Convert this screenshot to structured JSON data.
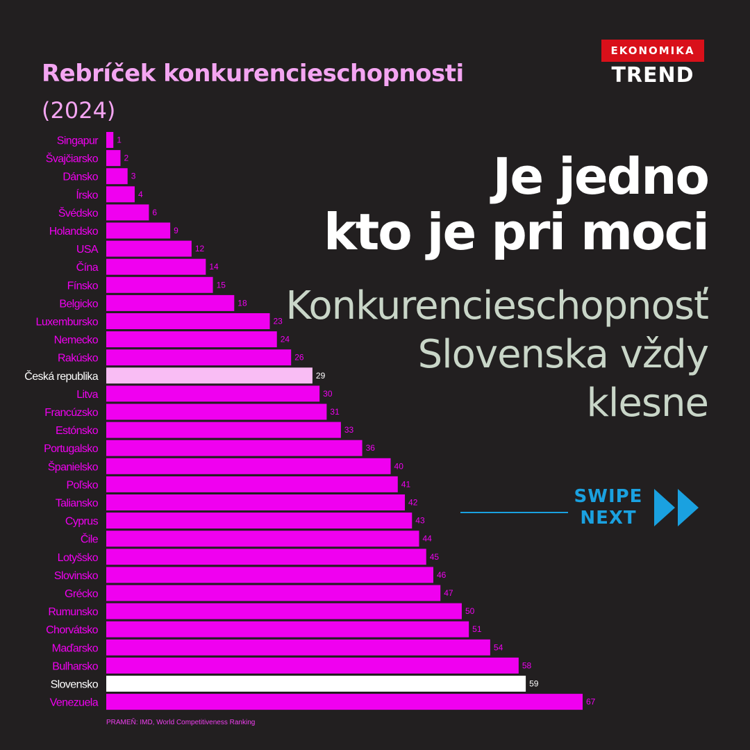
{
  "header": {
    "title": "Rebríček konkurencieschopnosti",
    "year": "(2024)"
  },
  "logo": {
    "badge": "EKONOMIKA",
    "wordmark": "TREND"
  },
  "headline": {
    "line1": "Je jedno",
    "line2": "kto je pri moci"
  },
  "subhead": {
    "line1": "Konkurencieschopnosť",
    "line2": "Slovenska vždy",
    "line3": "klesne"
  },
  "swipe": {
    "line1": "SWIPE",
    "line2": "NEXT",
    "icon": "double-chevron-right-icon"
  },
  "source": "PRAMEŇ: IMD, World Competitiveness Ranking",
  "colors": {
    "background": "#221f20",
    "bar": "#f000f0",
    "bar_highlight_cz": "#f9bdf4",
    "bar_highlight_sk": "#ffffff",
    "title": "#f4a5f2",
    "subhead": "#c9d6c8",
    "swipe": "#1aa1e0",
    "badge": "#d9101a"
  },
  "chart_data": {
    "type": "bar",
    "orientation": "horizontal",
    "title": "Rebríček konkurencieschopnosti",
    "subtitle": "(2024)",
    "categories": [
      "Singapur",
      "Švajčiarsko",
      "Dánsko",
      "Írsko",
      "Švédsko",
      "Holandsko",
      "USA",
      "Čína",
      "Fínsko",
      "Belgicko",
      "Luxembursko",
      "Nemecko",
      "Rakúsko",
      "Česká republika",
      "Litva",
      "Francúzsko",
      "Estónsko",
      "Portugalsko",
      "Španielsko",
      "Poľsko",
      "Taliansko",
      "Cyprus",
      "Čile",
      "Lotyšsko",
      "Slovinsko",
      "Grécko",
      "Rumunsko",
      "Chorvátsko",
      "Maďarsko",
      "Bulharsko",
      "Slovensko",
      "Venezuela"
    ],
    "values": [
      1,
      2,
      3,
      4,
      6,
      9,
      12,
      14,
      15,
      18,
      23,
      24,
      26,
      29,
      30,
      31,
      33,
      36,
      40,
      41,
      42,
      43,
      44,
      45,
      46,
      47,
      50,
      51,
      54,
      58,
      59,
      67
    ],
    "highlights": {
      "Česká republika": "bar_highlight_cz",
      "Slovensko": "bar_highlight_sk"
    },
    "xlim": [
      0,
      67
    ],
    "grid": false,
    "legend": "none"
  }
}
